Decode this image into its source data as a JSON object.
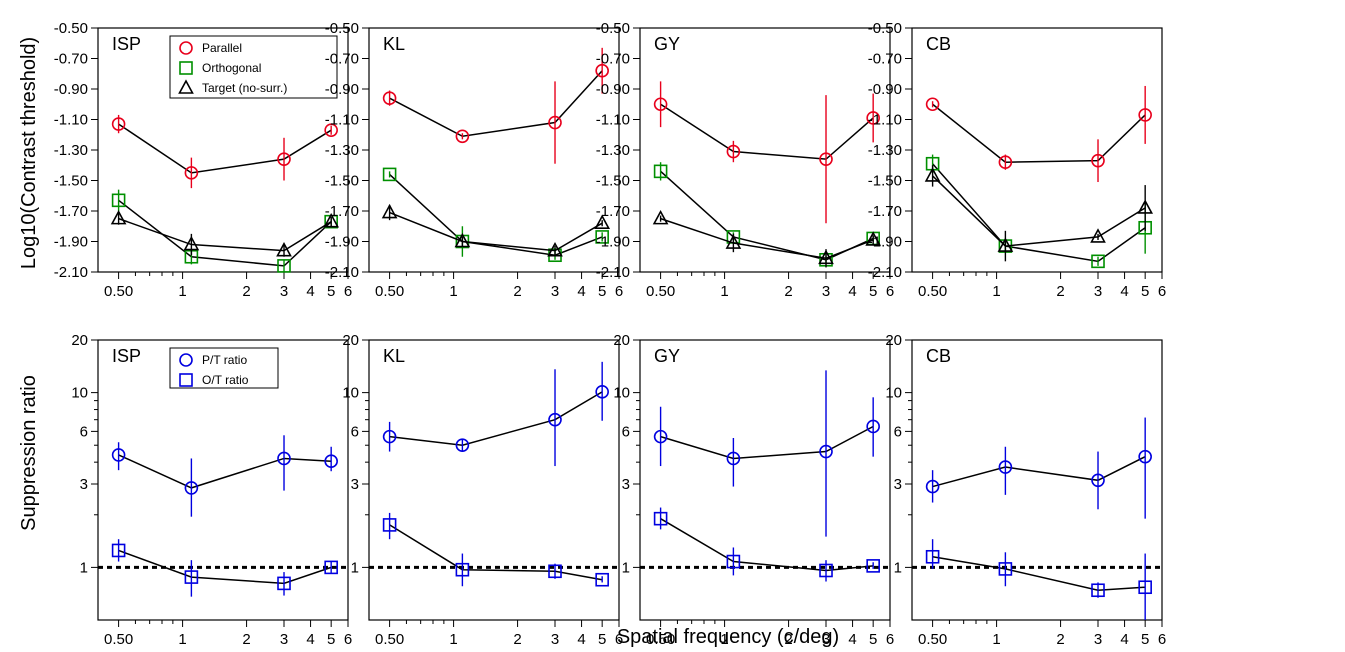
{
  "figure": {
    "xlabel": "Spatial frequency (c/deg)",
    "rows": [
      {
        "ylabel": "Log10(Contrast threshold)"
      },
      {
        "ylabel": "Suppression ratio"
      }
    ]
  },
  "colors": {
    "parallel": "#e8001c",
    "orthogonal": "#009000",
    "target": "#000000",
    "ratio": "#0000e0",
    "connect": "#000000"
  },
  "chart_data": [
    {
      "type": "scatter",
      "panel": "ISP",
      "x_scale": "log",
      "xlim": [
        0.4,
        6
      ],
      "xticks": [
        0.5,
        1,
        2,
        3,
        4,
        5,
        6
      ],
      "xtick_labels": [
        "0.50",
        "1",
        "2",
        "3",
        "4",
        "5",
        "6"
      ],
      "ylim": [
        -2.1,
        -0.5
      ],
      "yticks": [
        -0.5,
        -0.7,
        -0.9,
        -1.1,
        -1.3,
        -1.5,
        -1.7,
        -1.9,
        -2.1
      ],
      "ytick_labels": [
        "-0.50",
        "-0.70",
        "-0.90",
        "-1.10",
        "-1.30",
        "-1.50",
        "-1.70",
        "-1.90",
        "-2.10"
      ],
      "legend": [
        "Parallel",
        "Orthogonal",
        "Target (no-surr.)"
      ],
      "legend_position": "top-center",
      "series": [
        {
          "name": "Parallel",
          "color": "#e8001c",
          "marker": "circle",
          "x": [
            0.5,
            1.1,
            3,
            5
          ],
          "y": [
            -1.13,
            -1.45,
            -1.36,
            -1.17
          ],
          "err": [
            0.06,
            0.1,
            0.14,
            0.03
          ]
        },
        {
          "name": "Orthogonal",
          "color": "#009000",
          "marker": "square",
          "x": [
            0.5,
            1.1,
            3,
            5
          ],
          "y": [
            -1.63,
            -2.0,
            -2.06,
            -1.77
          ],
          "err": [
            0.07,
            0.05,
            0.04,
            0.03
          ]
        },
        {
          "name": "Target (no-surr.)",
          "color": "#000000",
          "marker": "triangle",
          "x": [
            0.5,
            1.1,
            3,
            5
          ],
          "y": [
            -1.75,
            -1.92,
            -1.96,
            -1.77
          ],
          "err": [
            0.04,
            0.07,
            0.04,
            0.03
          ]
        }
      ]
    },
    {
      "type": "scatter",
      "panel": "KL",
      "x_scale": "log",
      "xlim": [
        0.4,
        6
      ],
      "xticks": [
        0.5,
        1,
        2,
        3,
        4,
        5,
        6
      ],
      "xtick_labels": [
        "0.50",
        "1",
        "2",
        "3",
        "4",
        "5",
        "6"
      ],
      "ylim": [
        -2.1,
        -0.5
      ],
      "yticks": [
        -0.5,
        -0.7,
        -0.9,
        -1.1,
        -1.3,
        -1.5,
        -1.7,
        -1.9,
        -2.1
      ],
      "ytick_labels": [
        "-0.50",
        "-0.70",
        "-0.90",
        "-1.10",
        "-1.30",
        "-1.50",
        "-1.70",
        "-1.90",
        "-2.10"
      ],
      "series": [
        {
          "name": "Parallel",
          "color": "#e8001c",
          "marker": "circle",
          "x": [
            0.5,
            1.1,
            3,
            5
          ],
          "y": [
            -0.96,
            -1.21,
            -1.12,
            -0.78
          ],
          "err": [
            0.05,
            0.02,
            0.27,
            0.15
          ]
        },
        {
          "name": "Orthogonal",
          "color": "#009000",
          "marker": "square",
          "x": [
            0.5,
            1.1,
            3,
            5
          ],
          "y": [
            -1.46,
            -1.9,
            -1.99,
            -1.87
          ],
          "err": [
            0.02,
            0.1,
            0.03,
            0.03
          ]
        },
        {
          "name": "Target (no-surr.)",
          "color": "#000000",
          "marker": "triangle",
          "x": [
            0.5,
            1.1,
            3,
            5
          ],
          "y": [
            -1.71,
            -1.9,
            -1.96,
            -1.78
          ],
          "err": [
            0.05,
            0.03,
            0.03,
            0.02
          ]
        }
      ]
    },
    {
      "type": "scatter",
      "panel": "GY",
      "x_scale": "log",
      "xlim": [
        0.4,
        6
      ],
      "xticks": [
        0.5,
        1,
        2,
        3,
        4,
        5,
        6
      ],
      "xtick_labels": [
        "0.50",
        "1",
        "2",
        "3",
        "4",
        "5",
        "6"
      ],
      "ylim": [
        -2.1,
        -0.5
      ],
      "yticks": [
        -0.5,
        -0.7,
        -0.9,
        -1.1,
        -1.3,
        -1.5,
        -1.7,
        -1.9,
        -2.1
      ],
      "ytick_labels": [
        "-0.50",
        "-0.70",
        "-0.90",
        "-1.10",
        "-1.30",
        "-1.50",
        "-1.70",
        "-1.90",
        "-2.10"
      ],
      "series": [
        {
          "name": "Parallel",
          "color": "#e8001c",
          "marker": "circle",
          "x": [
            0.5,
            1.1,
            3,
            5
          ],
          "y": [
            -1.0,
            -1.31,
            -1.36,
            -1.09
          ],
          "err": [
            0.15,
            0.07,
            0.42,
            0.16
          ]
        },
        {
          "name": "Orthogonal",
          "color": "#009000",
          "marker": "square",
          "x": [
            0.5,
            1.1,
            3,
            5
          ],
          "y": [
            -1.44,
            -1.87,
            -2.02,
            -1.88
          ],
          "err": [
            0.06,
            0.03,
            0.03,
            0.02
          ]
        },
        {
          "name": "Target (no-surr.)",
          "color": "#000000",
          "marker": "triangle",
          "x": [
            0.5,
            1.1,
            3,
            5
          ],
          "y": [
            -1.75,
            -1.91,
            -2.01,
            -1.89
          ],
          "err": [
            0.02,
            0.06,
            0.06,
            0.03
          ]
        }
      ]
    },
    {
      "type": "scatter",
      "panel": "CB",
      "x_scale": "log",
      "xlim": [
        0.4,
        6
      ],
      "xticks": [
        0.5,
        1,
        2,
        3,
        4,
        5,
        6
      ],
      "xtick_labels": [
        "0.50",
        "1",
        "2",
        "3",
        "4",
        "5",
        "6"
      ],
      "ylim": [
        -2.1,
        -0.5
      ],
      "yticks": [
        -0.5,
        -0.7,
        -0.9,
        -1.1,
        -1.3,
        -1.5,
        -1.7,
        -1.9,
        -2.1
      ],
      "ytick_labels": [
        "-0.50",
        "-0.70",
        "-0.90",
        "-1.10",
        "-1.30",
        "-1.50",
        "-1.70",
        "-1.90",
        "-2.10"
      ],
      "series": [
        {
          "name": "Parallel",
          "color": "#e8001c",
          "marker": "circle",
          "x": [
            0.5,
            1.1,
            3,
            5
          ],
          "y": [
            -1.0,
            -1.38,
            -1.37,
            -1.07
          ],
          "err": [
            0.02,
            0.05,
            0.14,
            0.19
          ]
        },
        {
          "name": "Orthogonal",
          "color": "#009000",
          "marker": "square",
          "x": [
            0.5,
            1.1,
            3,
            5
          ],
          "y": [
            -1.39,
            -1.93,
            -2.03,
            -1.81
          ],
          "err": [
            0.06,
            0.04,
            0.03,
            0.17
          ]
        },
        {
          "name": "Target (no-surr.)",
          "color": "#000000",
          "marker": "triangle",
          "x": [
            0.5,
            1.1,
            3,
            5
          ],
          "y": [
            -1.47,
            -1.93,
            -1.87,
            -1.68
          ],
          "err": [
            0.07,
            0.1,
            0.02,
            0.15
          ]
        }
      ]
    },
    {
      "type": "scatter",
      "panel": "ISP",
      "x_scale": "log",
      "y_scale": "log",
      "xlim": [
        0.4,
        6
      ],
      "xticks": [
        0.5,
        1,
        2,
        3,
        4,
        5,
        6
      ],
      "xtick_labels": [
        "0.50",
        "1",
        "2",
        "3",
        "4",
        "5",
        "6"
      ],
      "ylim": [
        0.5,
        20
      ],
      "yticks": [
        1,
        3,
        6,
        10,
        20
      ],
      "ytick_labels": [
        "1",
        "3",
        "6",
        "10",
        "20"
      ],
      "reference_line": 1,
      "legend": [
        "P/T ratio",
        "O/T ratio"
      ],
      "legend_position": "top-center",
      "series": [
        {
          "name": "P/T ratio",
          "color": "#0000e0",
          "marker": "circle",
          "x": [
            0.5,
            1.1,
            3,
            5
          ],
          "y": [
            4.4,
            2.85,
            4.2,
            4.05
          ],
          "err_low": [
            3.6,
            1.95,
            2.75,
            3.55
          ],
          "err_high": [
            5.2,
            4.2,
            5.7,
            4.9
          ]
        },
        {
          "name": "O/T ratio",
          "color": "#0000e0",
          "marker": "square",
          "x": [
            0.5,
            1.1,
            3,
            5
          ],
          "y": [
            1.25,
            0.88,
            0.81,
            1.0
          ],
          "err_low": [
            1.08,
            0.68,
            0.69,
            0.93
          ],
          "err_high": [
            1.45,
            1.1,
            0.94,
            1.08
          ]
        }
      ]
    },
    {
      "type": "scatter",
      "panel": "KL",
      "x_scale": "log",
      "y_scale": "log",
      "xlim": [
        0.4,
        6
      ],
      "xticks": [
        0.5,
        1,
        2,
        3,
        4,
        5,
        6
      ],
      "xtick_labels": [
        "0.50",
        "1",
        "2",
        "3",
        "4",
        "5",
        "6"
      ],
      "ylim": [
        0.5,
        20
      ],
      "yticks": [
        1,
        3,
        6,
        10,
        20
      ],
      "ytick_labels": [
        "1",
        "3",
        "6",
        "10",
        "20"
      ],
      "reference_line": 1,
      "series": [
        {
          "name": "P/T ratio",
          "color": "#0000e0",
          "marker": "circle",
          "x": [
            0.5,
            1.1,
            3,
            5
          ],
          "y": [
            5.6,
            5.0,
            7.0,
            10.1
          ],
          "err_low": [
            4.6,
            4.6,
            3.8,
            6.9
          ],
          "err_high": [
            6.8,
            5.4,
            13.6,
            15.0
          ]
        },
        {
          "name": "O/T ratio",
          "color": "#0000e0",
          "marker": "square",
          "x": [
            0.5,
            1.1,
            3,
            5
          ],
          "y": [
            1.75,
            0.97,
            0.95,
            0.85
          ],
          "err_low": [
            1.45,
            0.78,
            0.86,
            0.82
          ],
          "err_high": [
            2.05,
            1.2,
            1.05,
            0.89
          ]
        }
      ]
    },
    {
      "type": "scatter",
      "panel": "GY",
      "x_scale": "log",
      "y_scale": "log",
      "xlim": [
        0.4,
        6
      ],
      "xticks": [
        0.5,
        1,
        2,
        3,
        4,
        5,
        6
      ],
      "xtick_labels": [
        "0.50",
        "1",
        "2",
        "3",
        "4",
        "5",
        "6"
      ],
      "ylim": [
        0.5,
        20
      ],
      "yticks": [
        1,
        3,
        6,
        10,
        20
      ],
      "ytick_labels": [
        "1",
        "3",
        "6",
        "10",
        "20"
      ],
      "reference_line": 1,
      "series": [
        {
          "name": "P/T ratio",
          "color": "#0000e0",
          "marker": "circle",
          "x": [
            0.5,
            1.1,
            3,
            5
          ],
          "y": [
            5.6,
            4.2,
            4.6,
            6.4
          ],
          "err_low": [
            3.8,
            2.9,
            1.5,
            4.3
          ],
          "err_high": [
            8.3,
            5.5,
            13.4,
            9.4
          ]
        },
        {
          "name": "O/T ratio",
          "color": "#0000e0",
          "marker": "square",
          "x": [
            0.5,
            1.1,
            3,
            5
          ],
          "y": [
            1.9,
            1.08,
            0.96,
            1.02
          ],
          "err_low": [
            1.65,
            0.9,
            0.83,
            0.98
          ],
          "err_high": [
            2.2,
            1.3,
            1.1,
            1.07
          ]
        }
      ]
    },
    {
      "type": "scatter",
      "panel": "CB",
      "x_scale": "log",
      "y_scale": "log",
      "xlim": [
        0.4,
        6
      ],
      "xticks": [
        0.5,
        1,
        2,
        3,
        4,
        5,
        6
      ],
      "xtick_labels": [
        "0.50",
        "1",
        "2",
        "3",
        "4",
        "5",
        "6"
      ],
      "ylim": [
        0.5,
        20
      ],
      "yticks": [
        1,
        3,
        6,
        10,
        20
      ],
      "ytick_labels": [
        "1",
        "3",
        "6",
        "10",
        "20"
      ],
      "reference_line": 1,
      "series": [
        {
          "name": "P/T ratio",
          "color": "#0000e0",
          "marker": "circle",
          "x": [
            0.5,
            1.1,
            3,
            5
          ],
          "y": [
            2.9,
            3.75,
            3.15,
            4.3
          ],
          "err_low": [
            2.35,
            2.6,
            2.15,
            1.9
          ],
          "err_high": [
            3.6,
            4.9,
            4.6,
            7.2
          ]
        },
        {
          "name": "O/T ratio",
          "color": "#0000e0",
          "marker": "square",
          "x": [
            0.5,
            1.1,
            3,
            5
          ],
          "y": [
            1.15,
            0.98,
            0.74,
            0.77
          ],
          "err_low": [
            0.98,
            0.78,
            0.67,
            0.5
          ],
          "err_high": [
            1.45,
            1.22,
            0.82,
            1.2
          ]
        }
      ]
    }
  ]
}
